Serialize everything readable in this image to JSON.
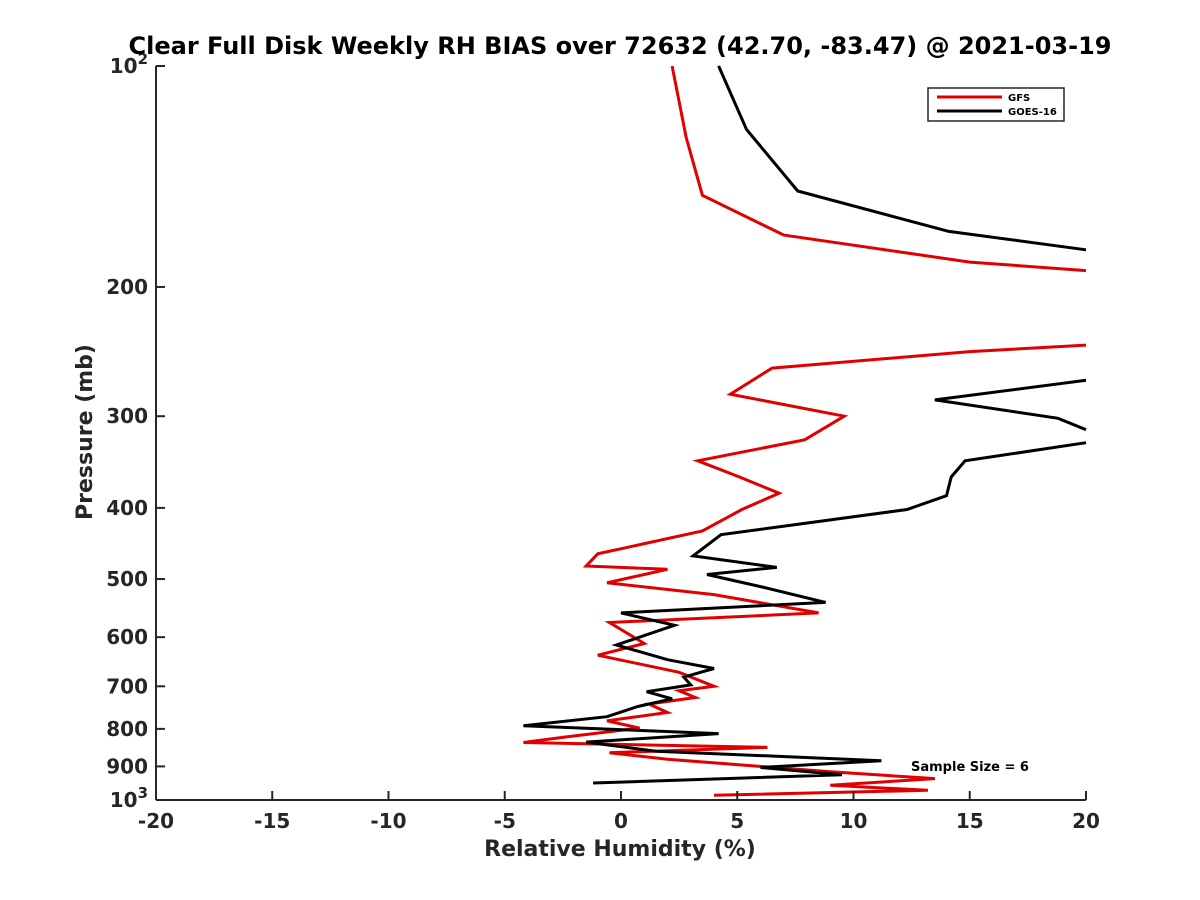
{
  "chart_data": {
    "type": "line",
    "title": "Clear Full Disk Weekly RH BIAS over 72632 (42.70, -83.47) @ 2021-03-19",
    "xlabel": "Relative Humidity (%)",
    "ylabel": "Pressure (mb)",
    "xlim": [
      -20,
      20
    ],
    "ylim": [
      100,
      1000
    ],
    "y_scale": "log",
    "y_reversed": true,
    "x_ticks": [
      "-20",
      "-15",
      "-10",
      "-5",
      "0",
      "5",
      "10",
      "15",
      "20"
    ],
    "y_ticks": [
      {
        "value": 100,
        "base": "10",
        "exp": "2"
      },
      {
        "value": 200,
        "label": "200"
      },
      {
        "value": 300,
        "label": "300"
      },
      {
        "value": 400,
        "label": "400"
      },
      {
        "value": 500,
        "label": "500"
      },
      {
        "value": 600,
        "label": "600"
      },
      {
        "value": 700,
        "label": "700"
      },
      {
        "value": 800,
        "label": "800"
      },
      {
        "value": 900,
        "label": "900"
      },
      {
        "value": 1000,
        "base": "10",
        "exp": "3"
      }
    ],
    "grid": false,
    "legend_position": "top-right",
    "annotation": "Sample Size = 6",
    "series": [
      {
        "name": "GFS",
        "color": "#e00000",
        "points": [
          [
            2.2,
            100
          ],
          [
            2.8,
            125
          ],
          [
            3.5,
            150
          ],
          [
            7.0,
            170
          ],
          [
            15.0,
            185
          ],
          [
            20.0,
            190
          ],
          [
            null,
            null
          ],
          [
            20.0,
            240
          ],
          [
            15.0,
            245
          ],
          [
            6.5,
            258
          ],
          [
            4.7,
            280
          ],
          [
            9.6,
            300
          ],
          [
            7.9,
            323
          ],
          [
            3.3,
            345
          ],
          [
            5.0,
            362
          ],
          [
            6.8,
            382
          ],
          [
            5.2,
            402
          ],
          [
            3.5,
            430
          ],
          [
            -1.0,
            462
          ],
          [
            -1.5,
            480
          ],
          [
            2.0,
            485
          ],
          [
            -0.6,
            506
          ],
          [
            4.0,
            525
          ],
          [
            8.5,
            556
          ],
          [
            -0.5,
            573
          ],
          [
            1.0,
            612
          ],
          [
            -1.0,
            635
          ],
          [
            2.5,
            670
          ],
          [
            4.0,
            700
          ],
          [
            2.5,
            710
          ],
          [
            3.2,
            725
          ],
          [
            1.2,
            740
          ],
          [
            2.0,
            760
          ],
          [
            -0.6,
            780
          ],
          [
            0.8,
            798
          ],
          [
            -2.3,
            820
          ],
          [
            -4.2,
            835
          ],
          [
            6.3,
            848
          ],
          [
            -0.5,
            862
          ],
          [
            2.0,
            880
          ],
          [
            9.0,
            915
          ],
          [
            13.5,
            935
          ],
          [
            9.0,
            955
          ],
          [
            13.2,
            970
          ],
          [
            4.0,
            985
          ]
        ]
      },
      {
        "name": "GOES-16",
        "color": "#000000",
        "points": [
          [
            4.2,
            100
          ],
          [
            5.4,
            122
          ],
          [
            7.6,
            148
          ],
          [
            14.1,
            168
          ],
          [
            20.0,
            178
          ],
          [
            null,
            null
          ],
          [
            20.0,
            268
          ],
          [
            13.5,
            285
          ],
          [
            18.8,
            302
          ],
          [
            20.0,
            313
          ],
          [
            null,
            null
          ],
          [
            20.0,
            326
          ],
          [
            14.8,
            345
          ],
          [
            14.2,
            363
          ],
          [
            14.0,
            385
          ],
          [
            12.3,
            402
          ],
          [
            4.3,
            435
          ],
          [
            3.1,
            465
          ],
          [
            6.7,
            482
          ],
          [
            3.7,
            493
          ],
          [
            6.0,
            512
          ],
          [
            8.8,
            538
          ],
          [
            0.0,
            556
          ],
          [
            2.3,
            578
          ],
          [
            -0.2,
            615
          ],
          [
            2.0,
            644
          ],
          [
            4.0,
            662
          ],
          [
            2.7,
            680
          ],
          [
            3.0,
            697
          ],
          [
            1.1,
            712
          ],
          [
            2.2,
            728
          ],
          [
            0.7,
            746
          ],
          [
            -0.6,
            770
          ],
          [
            -4.2,
            792
          ],
          [
            4.2,
            812
          ],
          [
            -1.5,
            834
          ],
          [
            1.5,
            858
          ],
          [
            11.2,
            884
          ],
          [
            6.0,
            903
          ],
          [
            9.5,
            924
          ],
          [
            -1.2,
            948
          ]
        ]
      }
    ]
  }
}
